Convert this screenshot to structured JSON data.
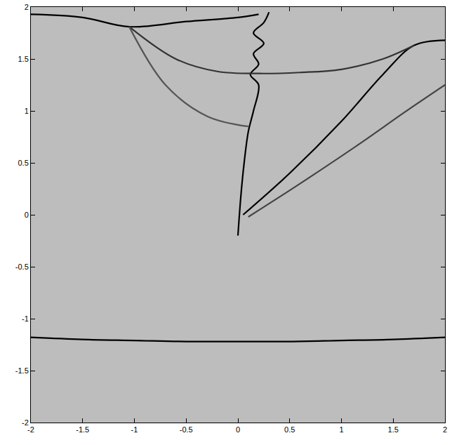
{
  "chart_data": {
    "type": "line",
    "xlim": [
      -2,
      2
    ],
    "ylim": [
      -2,
      2
    ],
    "xticks": [
      -2,
      -1.5,
      -1,
      -0.5,
      0,
      0.5,
      1,
      1.5,
      2
    ],
    "yticks": [
      -2,
      -1.5,
      -1,
      -0.5,
      0,
      0.5,
      1,
      1.5,
      2
    ],
    "grid": false,
    "series": [
      {
        "color": "#000000",
        "line_style": "solid",
        "x": [
          -2,
          -1.5,
          -1,
          -0.5,
          0,
          0.5,
          1,
          1.5,
          2
        ],
        "values": [
          -1.18,
          -1.2,
          -1.21,
          -1.22,
          -1.22,
          -1.22,
          -1.21,
          -1.2,
          -1.18
        ]
      },
      {
        "color": "#000000",
        "line_style": "solid",
        "x": [
          -2,
          -1.5,
          -1.05,
          -0.5,
          0,
          0.2
        ],
        "values": [
          1.93,
          1.9,
          1.81,
          1.86,
          1.9,
          1.93
        ]
      },
      {
        "color": "#000000",
        "line_style": "solid",
        "x": [
          0.05,
          0.5,
          1,
          1.4,
          1.7,
          2
        ],
        "values": [
          0,
          0.4,
          0.9,
          1.35,
          1.63,
          1.68
        ]
      },
      {
        "color": "#000000",
        "line_style": "solid",
        "x": [
          0,
          0.03,
          0.06,
          0.1,
          0.15,
          0.2,
          0.12,
          0.2,
          0.15,
          0.25,
          0.15,
          0.25,
          0.3
        ],
        "values": [
          -0.2,
          0.2,
          0.5,
          0.8,
          1.0,
          1.25,
          1.35,
          1.45,
          1.55,
          1.65,
          1.75,
          1.85,
          1.95
        ]
      },
      {
        "color": "#333333",
        "line_style": "solid",
        "x": [
          -1.05,
          -0.6,
          -0.2,
          0.2,
          0.6,
          1,
          1.4,
          1.7
        ],
        "values": [
          1.81,
          1.5,
          1.38,
          1.36,
          1.37,
          1.4,
          1.5,
          1.63
        ]
      },
      {
        "color": "#555555",
        "line_style": "solid",
        "x": [
          -1.05,
          -0.7,
          -0.3,
          0.1
        ],
        "values": [
          1.81,
          1.25,
          0.95,
          0.85
        ]
      },
      {
        "color": "#444444",
        "line_style": "solid",
        "x": [
          0.1,
          0.6,
          1.2,
          1.6,
          2
        ],
        "values": [
          -0.02,
          0.3,
          0.7,
          0.98,
          1.25
        ]
      }
    ]
  }
}
